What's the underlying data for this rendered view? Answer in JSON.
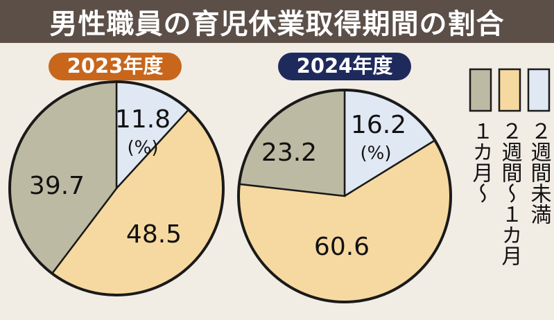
{
  "title": "男性職員の育児休業取得期間の割合",
  "colors": {
    "title_bg": "#5b4f48",
    "badge_2023": "#c8661c",
    "badge_2024": "#1f2a5c",
    "over_1_month": "#bdbaa3",
    "two_weeks_to_1_month": "#f6d9a0",
    "under_2_weeks": "#dfe8f3",
    "outline": "#1a1a1a",
    "background": "#f1ece4"
  },
  "unit_label": "(%)",
  "chart_data": {
    "type": "pie",
    "unit": "%",
    "legend": {
      "placement": "right",
      "entries": [
        {
          "name": "１カ月～",
          "color_key": "over_1_month"
        },
        {
          "name": "２週間～１カ月",
          "color_key": "two_weeks_to_1_month"
        },
        {
          "name": "２週間未満",
          "color_key": "under_2_weeks"
        }
      ]
    },
    "pies": [
      {
        "label": "2023年度",
        "badge_color_key": "badge_2023",
        "slices": [
          {
            "name": "２週間未満",
            "value": 11.8,
            "label": "11.8",
            "color_key": "under_2_weeks"
          },
          {
            "name": "２週間～１カ月",
            "value": 48.5,
            "label": "48.5",
            "color_key": "two_weeks_to_1_month"
          },
          {
            "name": "１カ月～",
            "value": 39.7,
            "label": "39.7",
            "color_key": "over_1_month"
          }
        ]
      },
      {
        "label": "2024年度",
        "badge_color_key": "badge_2024",
        "slices": [
          {
            "name": "２週間未満",
            "value": 16.2,
            "label": "16.2",
            "color_key": "under_2_weeks"
          },
          {
            "name": "２週間～１カ月",
            "value": 60.6,
            "label": "60.6",
            "color_key": "two_weeks_to_1_month"
          },
          {
            "name": "１カ月～",
            "value": 23.2,
            "label": "23.2",
            "color_key": "over_1_month"
          }
        ]
      }
    ]
  }
}
